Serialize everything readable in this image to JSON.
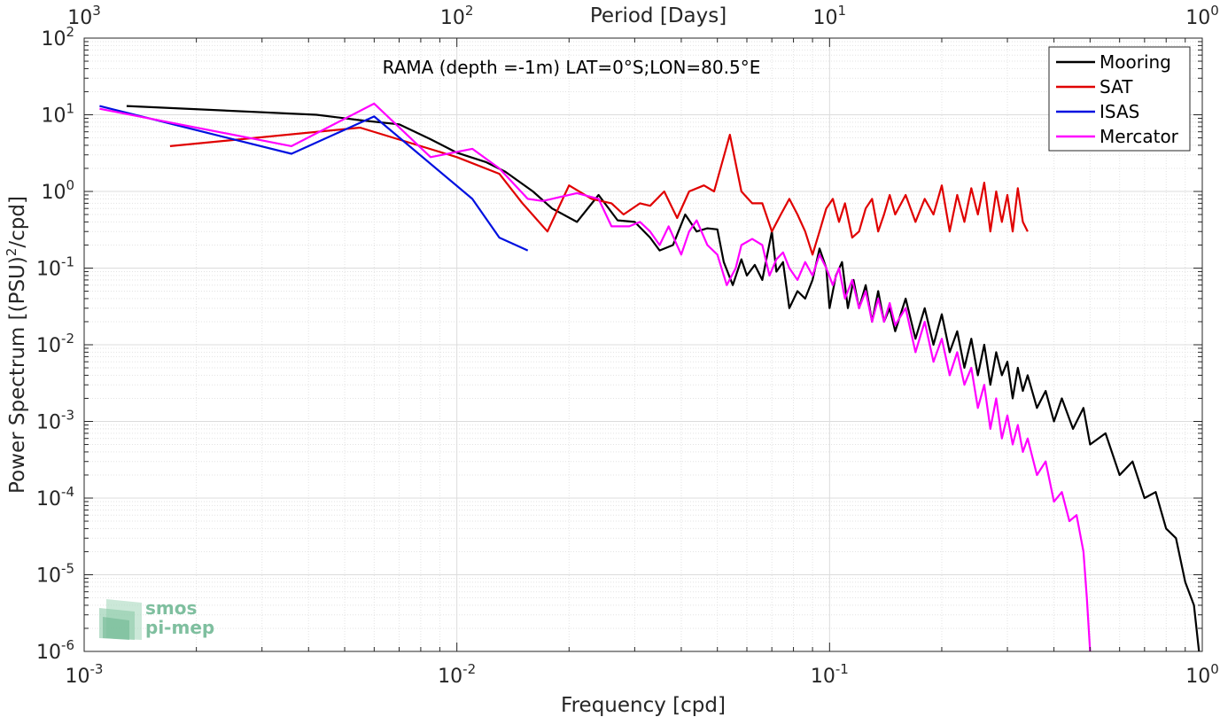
{
  "chart_data": {
    "type": "line",
    "title": "",
    "annotation": "RAMA (depth =-1m) LAT=0°S;LON=80.5°E",
    "xlabel": "Frequency [cpd]",
    "ylabel_main": "Power Spectrum [(PSU)",
    "ylabel_sup": "2",
    "ylabel_tail": "/cpd]",
    "top_xlabel": "Period [Days]",
    "x_scale": "log",
    "y_scale": "log",
    "xlim": [
      0.001,
      1
    ],
    "ylim": [
      1e-06,
      100
    ],
    "grid": true,
    "legend_position": "top-right",
    "x_ticks": [
      {
        "base": "10",
        "exp": "-3",
        "value": 0.001
      },
      {
        "base": "10",
        "exp": "-2",
        "value": 0.01
      },
      {
        "base": "10",
        "exp": "-1",
        "value": 0.1
      },
      {
        "base": "10",
        "exp": "0",
        "value": 1
      }
    ],
    "top_ticks": [
      {
        "base": "10",
        "exp": "3",
        "value": 0.001
      },
      {
        "base": "10",
        "exp": "2",
        "value": 0.01
      },
      {
        "base": "10",
        "exp": "1",
        "value": 0.1
      },
      {
        "base": "10",
        "exp": "0",
        "value": 1
      }
    ],
    "y_ticks": [
      {
        "base": "10",
        "exp": "-6",
        "value": 1e-06
      },
      {
        "base": "10",
        "exp": "-5",
        "value": 1e-05
      },
      {
        "base": "10",
        "exp": "-4",
        "value": 0.0001
      },
      {
        "base": "10",
        "exp": "-3",
        "value": 0.001
      },
      {
        "base": "10",
        "exp": "-2",
        "value": 0.01
      },
      {
        "base": "10",
        "exp": "-1",
        "value": 0.1
      },
      {
        "base": "10",
        "exp": "0",
        "value": 1
      },
      {
        "base": "10",
        "exp": "1",
        "value": 10
      },
      {
        "base": "10",
        "exp": "2",
        "value": 100
      }
    ],
    "series": [
      {
        "name": "Mooring",
        "color": "#000000",
        "points": [
          [
            0.0013,
            13
          ],
          [
            0.0042,
            10
          ],
          [
            0.0055,
            8.5
          ],
          [
            0.007,
            7.5
          ],
          [
            0.0085,
            4.8
          ],
          [
            0.01,
            3.2
          ],
          [
            0.012,
            2.4
          ],
          [
            0.0135,
            1.8
          ],
          [
            0.016,
            1.0
          ],
          [
            0.018,
            0.6
          ],
          [
            0.021,
            0.4
          ],
          [
            0.024,
            0.9
          ],
          [
            0.027,
            0.42
          ],
          [
            0.03,
            0.4
          ],
          [
            0.033,
            0.25
          ],
          [
            0.035,
            0.17
          ],
          [
            0.038,
            0.2
          ],
          [
            0.041,
            0.5
          ],
          [
            0.044,
            0.3
          ],
          [
            0.047,
            0.33
          ],
          [
            0.05,
            0.32
          ],
          [
            0.052,
            0.12
          ],
          [
            0.055,
            0.06
          ],
          [
            0.058,
            0.13
          ],
          [
            0.06,
            0.08
          ],
          [
            0.063,
            0.11
          ],
          [
            0.066,
            0.07
          ],
          [
            0.07,
            0.3
          ],
          [
            0.072,
            0.09
          ],
          [
            0.075,
            0.12
          ],
          [
            0.078,
            0.03
          ],
          [
            0.082,
            0.05
          ],
          [
            0.086,
            0.04
          ],
          [
            0.09,
            0.07
          ],
          [
            0.094,
            0.18
          ],
          [
            0.098,
            0.1
          ],
          [
            0.1,
            0.03
          ],
          [
            0.104,
            0.08
          ],
          [
            0.108,
            0.12
          ],
          [
            0.112,
            0.03
          ],
          [
            0.116,
            0.07
          ],
          [
            0.12,
            0.03
          ],
          [
            0.125,
            0.06
          ],
          [
            0.13,
            0.02
          ],
          [
            0.135,
            0.05
          ],
          [
            0.14,
            0.02
          ],
          [
            0.145,
            0.03
          ],
          [
            0.15,
            0.015
          ],
          [
            0.16,
            0.04
          ],
          [
            0.17,
            0.012
          ],
          [
            0.18,
            0.03
          ],
          [
            0.19,
            0.01
          ],
          [
            0.2,
            0.025
          ],
          [
            0.21,
            0.008
          ],
          [
            0.22,
            0.015
          ],
          [
            0.23,
            0.005
          ],
          [
            0.24,
            0.012
          ],
          [
            0.25,
            0.004
          ],
          [
            0.26,
            0.01
          ],
          [
            0.27,
            0.003
          ],
          [
            0.28,
            0.008
          ],
          [
            0.29,
            0.004
          ],
          [
            0.3,
            0.006
          ],
          [
            0.31,
            0.002
          ],
          [
            0.32,
            0.005
          ],
          [
            0.33,
            0.0025
          ],
          [
            0.34,
            0.004
          ],
          [
            0.36,
            0.0015
          ],
          [
            0.38,
            0.0025
          ],
          [
            0.4,
            0.001
          ],
          [
            0.42,
            0.002
          ],
          [
            0.45,
            0.0008
          ],
          [
            0.48,
            0.0015
          ],
          [
            0.5,
            0.0005
          ],
          [
            0.55,
            0.0007
          ],
          [
            0.6,
            0.0002
          ],
          [
            0.65,
            0.0003
          ],
          [
            0.7,
            0.0001
          ],
          [
            0.75,
            0.00012
          ],
          [
            0.8,
            4e-05
          ],
          [
            0.85,
            3e-05
          ],
          [
            0.9,
            8e-06
          ],
          [
            0.95,
            4e-06
          ],
          [
            0.98,
            1e-06
          ]
        ]
      },
      {
        "name": "SAT",
        "color": "#e00000",
        "points": [
          [
            0.0017,
            3.9
          ],
          [
            0.0055,
            6.8
          ],
          [
            0.01,
            2.8
          ],
          [
            0.013,
            1.7
          ],
          [
            0.015,
            0.7
          ],
          [
            0.0175,
            0.3
          ],
          [
            0.02,
            1.2
          ],
          [
            0.023,
            0.8
          ],
          [
            0.026,
            0.7
          ],
          [
            0.028,
            0.5
          ],
          [
            0.031,
            0.7
          ],
          [
            0.033,
            0.65
          ],
          [
            0.036,
            1.0
          ],
          [
            0.039,
            0.45
          ],
          [
            0.042,
            1.0
          ],
          [
            0.046,
            1.2
          ],
          [
            0.049,
            1.0
          ],
          [
            0.054,
            5.5
          ],
          [
            0.058,
            1.0
          ],
          [
            0.062,
            0.7
          ],
          [
            0.066,
            0.7
          ],
          [
            0.07,
            0.3
          ],
          [
            0.074,
            0.5
          ],
          [
            0.078,
            0.8
          ],
          [
            0.082,
            0.5
          ],
          [
            0.086,
            0.3
          ],
          [
            0.09,
            0.15
          ],
          [
            0.094,
            0.3
          ],
          [
            0.098,
            0.6
          ],
          [
            0.102,
            0.8
          ],
          [
            0.106,
            0.4
          ],
          [
            0.11,
            0.7
          ],
          [
            0.115,
            0.25
          ],
          [
            0.12,
            0.3
          ],
          [
            0.125,
            0.6
          ],
          [
            0.13,
            0.8
          ],
          [
            0.135,
            0.3
          ],
          [
            0.14,
            0.5
          ],
          [
            0.145,
            0.9
          ],
          [
            0.15,
            0.5
          ],
          [
            0.16,
            0.9
          ],
          [
            0.17,
            0.4
          ],
          [
            0.18,
            0.8
          ],
          [
            0.19,
            0.5
          ],
          [
            0.2,
            1.2
          ],
          [
            0.21,
            0.3
          ],
          [
            0.22,
            0.9
          ],
          [
            0.23,
            0.4
          ],
          [
            0.24,
            1.1
          ],
          [
            0.25,
            0.5
          ],
          [
            0.26,
            1.3
          ],
          [
            0.27,
            0.3
          ],
          [
            0.28,
            1.0
          ],
          [
            0.29,
            0.4
          ],
          [
            0.3,
            0.9
          ],
          [
            0.31,
            0.3
          ],
          [
            0.32,
            1.1
          ],
          [
            0.33,
            0.4
          ],
          [
            0.34,
            0.3
          ]
        ]
      },
      {
        "name": "ISAS",
        "color": "#0010e0",
        "points": [
          [
            0.0011,
            13
          ],
          [
            0.0036,
            3.1
          ],
          [
            0.006,
            9.5
          ],
          [
            0.011,
            0.8
          ],
          [
            0.013,
            0.25
          ],
          [
            0.0155,
            0.17
          ]
        ]
      },
      {
        "name": "Mercator",
        "color": "#ff00ff",
        "points": [
          [
            0.0011,
            12
          ],
          [
            0.0036,
            3.9
          ],
          [
            0.006,
            14
          ],
          [
            0.0085,
            2.8
          ],
          [
            0.011,
            3.6
          ],
          [
            0.013,
            2.0
          ],
          [
            0.0155,
            0.8
          ],
          [
            0.017,
            0.75
          ],
          [
            0.021,
            0.95
          ],
          [
            0.024,
            0.8
          ],
          [
            0.026,
            0.35
          ],
          [
            0.029,
            0.35
          ],
          [
            0.031,
            0.4
          ],
          [
            0.033,
            0.3
          ],
          [
            0.035,
            0.2
          ],
          [
            0.037,
            0.35
          ],
          [
            0.04,
            0.15
          ],
          [
            0.042,
            0.3
          ],
          [
            0.044,
            0.42
          ],
          [
            0.047,
            0.2
          ],
          [
            0.05,
            0.15
          ],
          [
            0.053,
            0.06
          ],
          [
            0.056,
            0.1
          ],
          [
            0.058,
            0.2
          ],
          [
            0.062,
            0.24
          ],
          [
            0.066,
            0.2
          ],
          [
            0.069,
            0.08
          ],
          [
            0.072,
            0.13
          ],
          [
            0.075,
            0.16
          ],
          [
            0.078,
            0.1
          ],
          [
            0.082,
            0.07
          ],
          [
            0.086,
            0.12
          ],
          [
            0.09,
            0.08
          ],
          [
            0.094,
            0.15
          ],
          [
            0.098,
            0.1
          ],
          [
            0.102,
            0.06
          ],
          [
            0.106,
            0.1
          ],
          [
            0.11,
            0.04
          ],
          [
            0.115,
            0.07
          ],
          [
            0.12,
            0.03
          ],
          [
            0.125,
            0.05
          ],
          [
            0.13,
            0.02
          ],
          [
            0.135,
            0.04
          ],
          [
            0.14,
            0.02
          ],
          [
            0.145,
            0.035
          ],
          [
            0.15,
            0.018
          ],
          [
            0.16,
            0.03
          ],
          [
            0.17,
            0.008
          ],
          [
            0.18,
            0.02
          ],
          [
            0.19,
            0.006
          ],
          [
            0.2,
            0.012
          ],
          [
            0.21,
            0.004
          ],
          [
            0.22,
            0.008
          ],
          [
            0.23,
            0.003
          ],
          [
            0.24,
            0.005
          ],
          [
            0.25,
            0.0015
          ],
          [
            0.26,
            0.003
          ],
          [
            0.27,
            0.0008
          ],
          [
            0.28,
            0.002
          ],
          [
            0.29,
            0.0006
          ],
          [
            0.3,
            0.0012
          ],
          [
            0.31,
            0.0005
          ],
          [
            0.32,
            0.0009
          ],
          [
            0.33,
            0.0004
          ],
          [
            0.34,
            0.0006
          ],
          [
            0.36,
            0.0002
          ],
          [
            0.38,
            0.0003
          ],
          [
            0.4,
            9e-05
          ],
          [
            0.42,
            0.00012
          ],
          [
            0.44,
            5e-05
          ],
          [
            0.46,
            6e-05
          ],
          [
            0.48,
            2e-05
          ],
          [
            0.49,
            5e-06
          ],
          [
            0.5,
            1e-06
          ]
        ]
      }
    ]
  },
  "logo": {
    "line1": "smos",
    "line2": "pi-mep"
  }
}
